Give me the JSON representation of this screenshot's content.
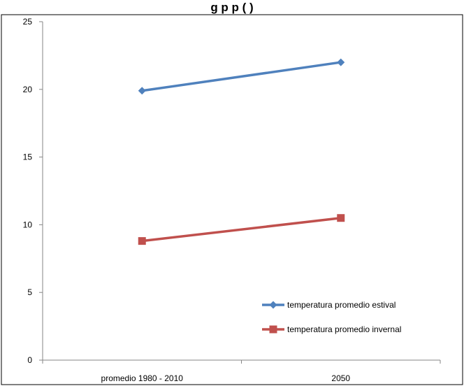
{
  "chart_data": {
    "type": "line",
    "title": "g         p         p         (    )",
    "categories": [
      "promedio 1980 - 2010",
      "2050"
    ],
    "series": [
      {
        "name": "temperatura promedio estival",
        "values": [
          19.9,
          22.0
        ],
        "color": "#4F81BD",
        "marker": "diamond"
      },
      {
        "name": "temperatura promedio invernal",
        "values": [
          8.8,
          10.5
        ],
        "color": "#C0504D",
        "marker": "square"
      }
    ],
    "yticks": [
      0,
      5,
      10,
      15,
      20,
      25
    ],
    "ylim": [
      0,
      25
    ],
    "grid": false,
    "legend_position": "bottom-right"
  }
}
